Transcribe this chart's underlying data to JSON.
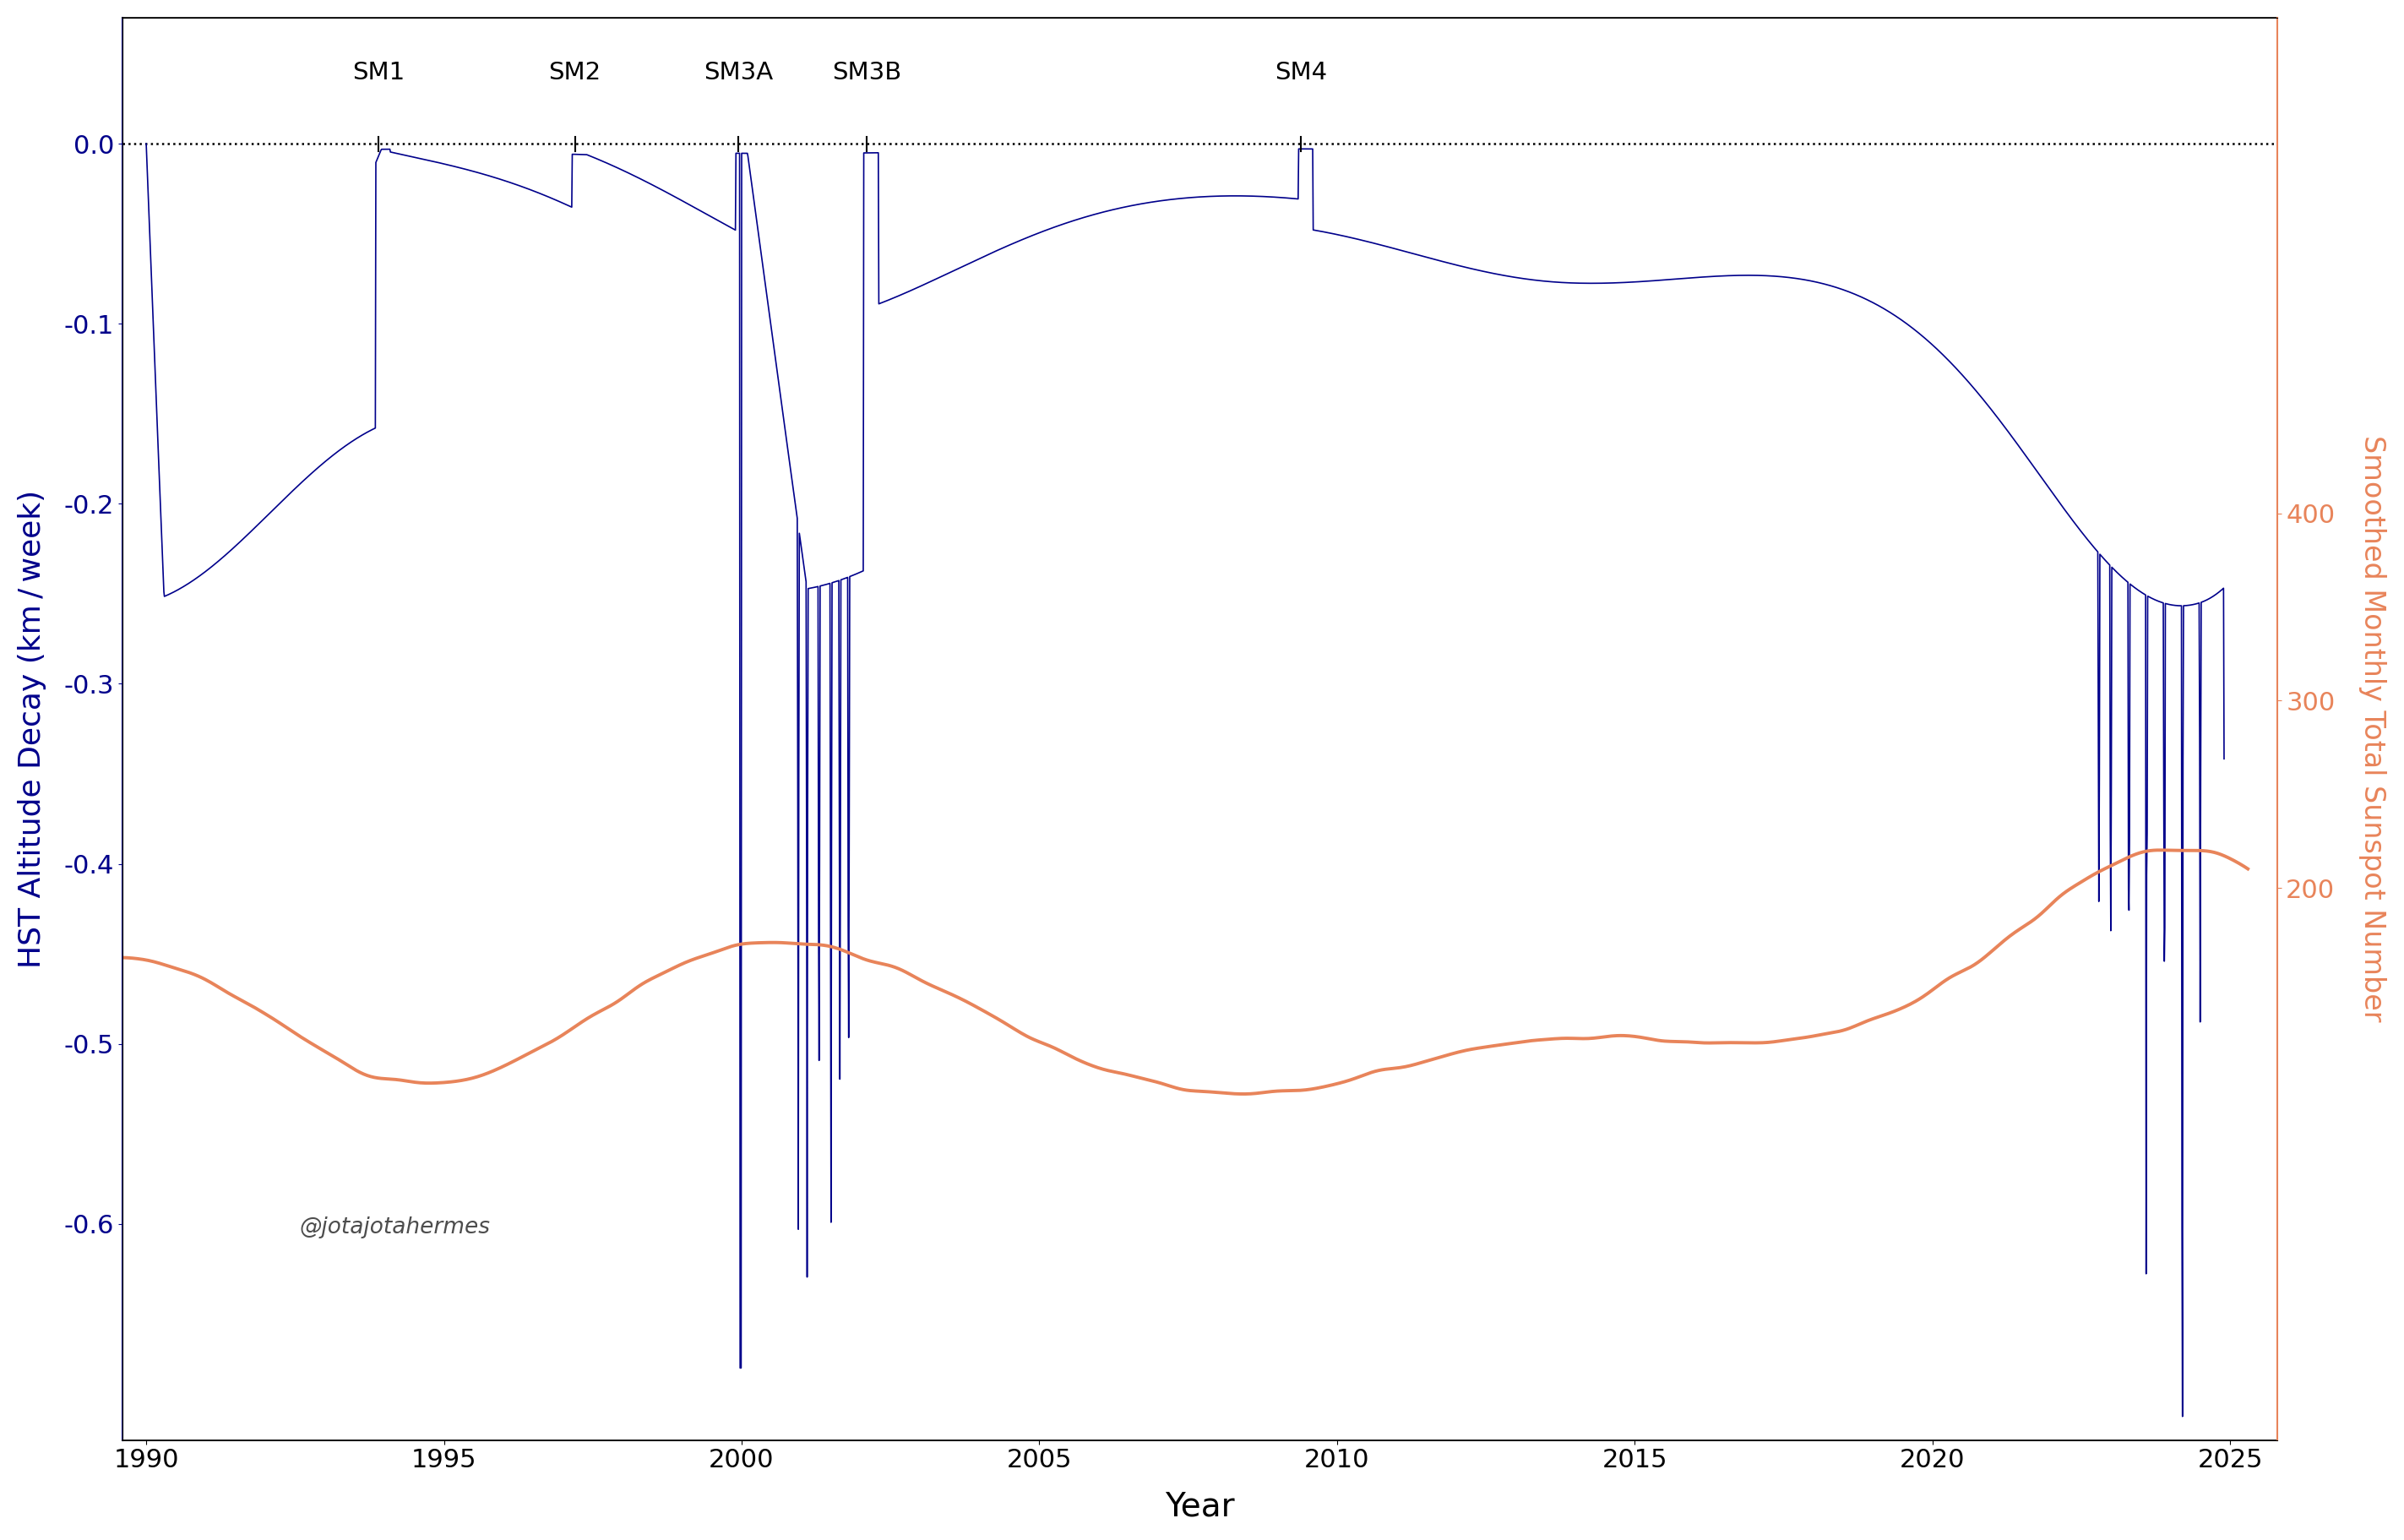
{
  "ylabel_left": "HST Altitude Decay (km / week)",
  "ylabel_right": "Smoothed Monthly Total Sunspot Number",
  "xlabel": "Year",
  "watermark": "@jotajotahermes",
  "left_color": "#00008B",
  "right_color": "#E8845A",
  "dotted_line_y": 0.0,
  "ylim_left": [
    -0.72,
    0.07
  ],
  "ylim_right": [
    -95,
    665
  ],
  "xlim": [
    1989.6,
    2025.8
  ],
  "service_missions": {
    "SM1": 1993.9,
    "SM2": 1997.2,
    "SM3A": 1999.95,
    "SM3B": 2002.1,
    "SM4": 2009.4
  },
  "yticks_left": [
    0.0,
    -0.1,
    -0.2,
    -0.3,
    -0.4,
    -0.5,
    -0.6
  ],
  "yticks_right": [
    200,
    300,
    400
  ],
  "xticks": [
    1990,
    1995,
    2000,
    2005,
    2010,
    2015,
    2020,
    2025
  ]
}
